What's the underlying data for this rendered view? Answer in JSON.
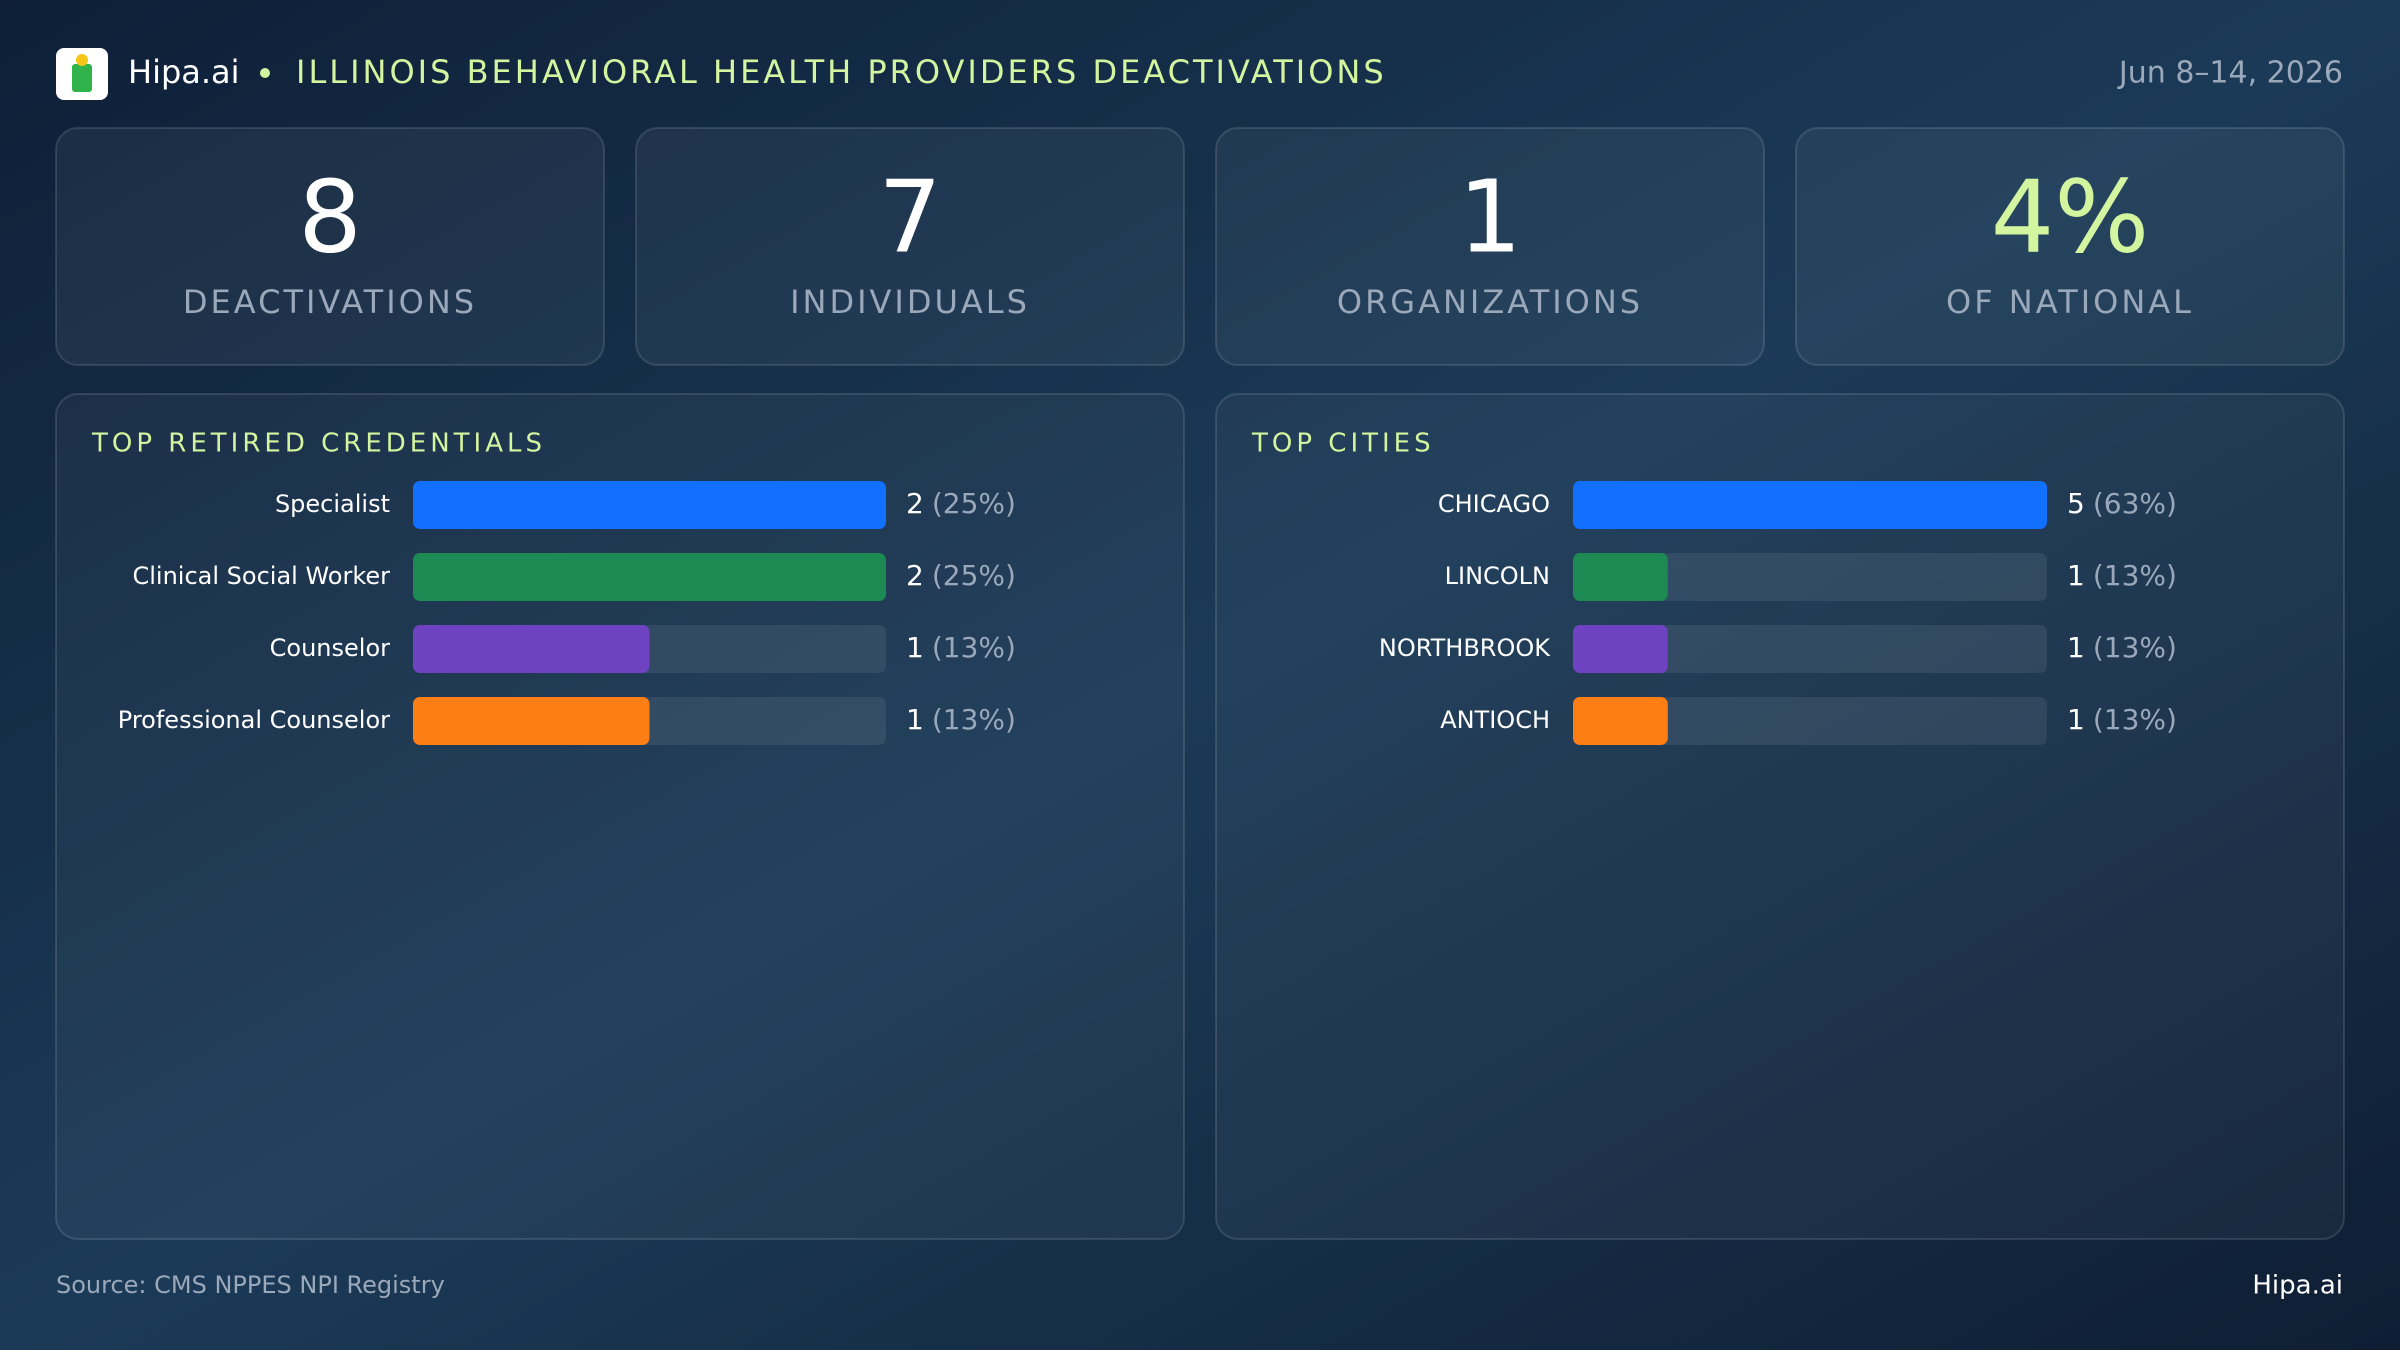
{
  "header": {
    "brand": "Hipa.ai",
    "title": "ILLINOIS BEHAVIORAL HEALTH PROVIDERS DEACTIVATIONS",
    "date": "Jun 8–14, 2026"
  },
  "kpis": [
    {
      "value": 8,
      "label": "DEACTIVATIONS"
    },
    {
      "value": 7,
      "label": "INDIVIDUALS"
    },
    {
      "value": 1,
      "label": "ORGANIZATIONS"
    },
    {
      "value": "4%",
      "label": "OF NATIONAL"
    }
  ],
  "chart_data": [
    {
      "type": "bar",
      "title": "TOP RETIRED CREDENTIALS",
      "categories": [
        "Specialist",
        "Clinical Social Worker",
        "Counselor",
        "Professional Counselor"
      ],
      "values": [
        2,
        2,
        1,
        1
      ],
      "value_labels": [
        "(25%)",
        "(25%)",
        "(13%)",
        "(13%)"
      ],
      "colors": [
        "#1170ff",
        "#1c8a52",
        "#6f42c1",
        "#fd7e14"
      ],
      "xlim": [
        0,
        2
      ]
    },
    {
      "type": "bar",
      "title": "TOP CITIES",
      "categories": [
        "CHICAGO",
        "LINCOLN",
        "NORTHBROOK",
        "ANTIOCH"
      ],
      "values": [
        5,
        1,
        1,
        1
      ],
      "value_labels": [
        "(63%)",
        "(13%)",
        "(13%)",
        "(13%)"
      ],
      "colors": [
        "#1170ff",
        "#1c8a52",
        "#6f42c1",
        "#fd7e14"
      ],
      "xlim": [
        0,
        5
      ]
    }
  ],
  "footer": {
    "source": "Source: CMS NPPES NPI Registry",
    "brand": "Hipa.ai"
  }
}
